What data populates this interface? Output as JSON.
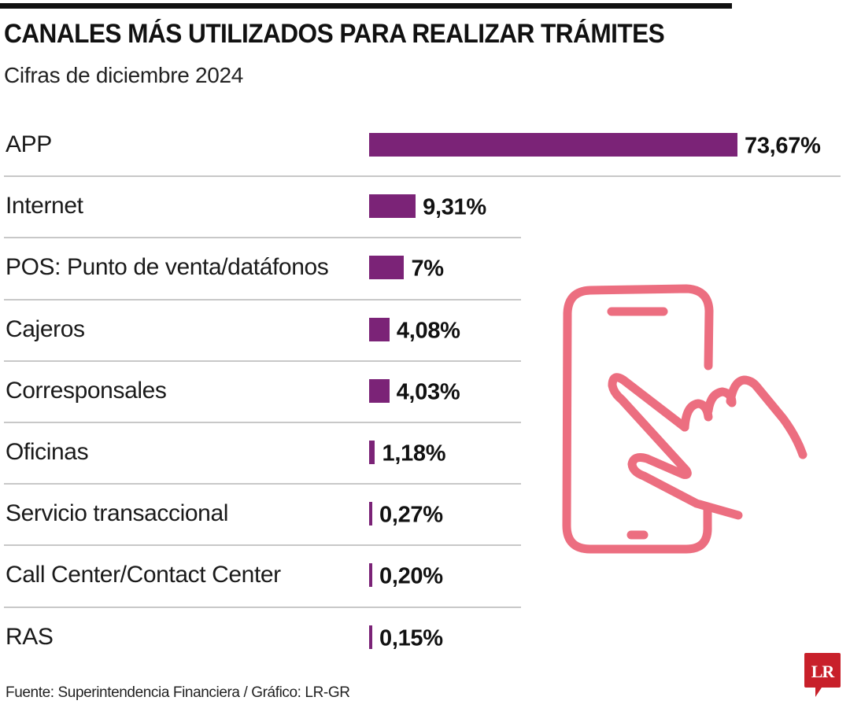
{
  "header": {
    "title": "CANALES MÁS UTILIZADOS PARA REALIZAR TRÁMITES",
    "subtitle": "Cifras de diciembre 2024"
  },
  "colors": {
    "bar": "#7b2377",
    "illustration": "#ec6e80",
    "logo_bg": "#c8202a",
    "divider": "#c8c8c8"
  },
  "chart_data": {
    "type": "bar",
    "orientation": "horizontal",
    "title": "CANALES MÁS UTILIZADOS PARA REALIZAR TRÁMITES",
    "subtitle": "Cifras de diciembre 2024",
    "xlabel": "",
    "ylabel": "",
    "unit": "%",
    "grid": false,
    "legend": "none",
    "categories": [
      "APP",
      "Internet",
      "POS: Punto de venta/datáfonos",
      "Cajeros",
      "Corresponsales",
      "Oficinas",
      "Servicio transaccional",
      "Call Center/Contact Center",
      "RAS"
    ],
    "values": [
      73.67,
      9.31,
      7,
      4.08,
      4.03,
      1.18,
      0.27,
      0.2,
      0.15
    ],
    "value_labels": [
      "73,67%",
      "9,31%",
      "7%",
      "4,08%",
      "4,03%",
      "1,18%",
      "0,27%",
      "0,20%",
      "0,15%"
    ],
    "xlim": [
      0,
      73.67
    ]
  },
  "illustration": {
    "icon": "hand-touching-smartphone-icon"
  },
  "footer": {
    "source": "Fuente: Superintendencia Financiera / Gráfico: LR-GR",
    "logo_text": "LR"
  }
}
